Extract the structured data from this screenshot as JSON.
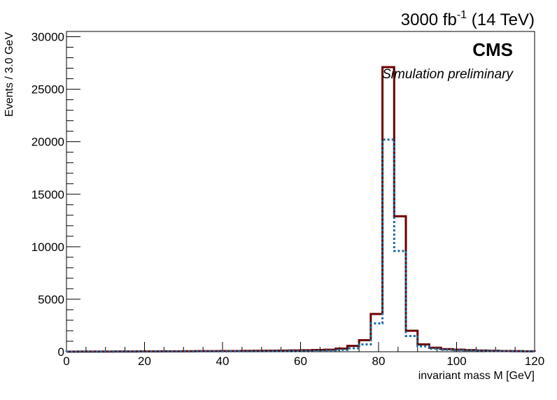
{
  "chart_data": {
    "type": "histogram",
    "lumi_label": {
      "value": "3000 fb",
      "exponent": "-1",
      "energy": " (14 TeV)"
    },
    "experiment": "CMS",
    "subtitle": "Simulation preliminary",
    "xlabel": "invariant mass M [GeV]",
    "ylabel": "Events / 3.0 GeV",
    "xlim": [
      0,
      120
    ],
    "ylim": [
      0,
      30500
    ],
    "x_ticks": [
      0,
      20,
      40,
      60,
      80,
      100,
      120
    ],
    "y_ticks": [
      0,
      5000,
      10000,
      15000,
      20000,
      25000,
      30000
    ],
    "grid": false,
    "legend": "none",
    "bin_width": 3,
    "bin_edges": [
      0,
      3,
      6,
      9,
      12,
      15,
      18,
      21,
      24,
      27,
      30,
      33,
      36,
      39,
      42,
      45,
      48,
      51,
      54,
      57,
      60,
      63,
      66,
      69,
      72,
      75,
      78,
      81,
      84,
      87,
      90,
      93,
      96,
      99,
      102,
      105,
      108,
      111,
      114,
      117,
      120
    ],
    "series": [
      {
        "style": "solid",
        "color": "#6b0000",
        "values": [
          10,
          15,
          20,
          20,
          25,
          25,
          30,
          35,
          40,
          45,
          50,
          55,
          60,
          65,
          70,
          80,
          90,
          100,
          110,
          125,
          140,
          165,
          195,
          300,
          560,
          1100,
          3600,
          27100,
          12900,
          2000,
          700,
          380,
          250,
          200,
          160,
          120,
          90,
          70,
          55,
          40
        ]
      },
      {
        "style": "dotted",
        "color": "#1a6fa0",
        "values": [
          5,
          8,
          10,
          12,
          15,
          15,
          18,
          20,
          22,
          25,
          28,
          30,
          33,
          36,
          40,
          45,
          50,
          55,
          60,
          70,
          80,
          95,
          115,
          180,
          330,
          700,
          2700,
          20200,
          9600,
          1500,
          520,
          280,
          190,
          150,
          120,
          90,
          70,
          55,
          40,
          30
        ]
      }
    ]
  }
}
